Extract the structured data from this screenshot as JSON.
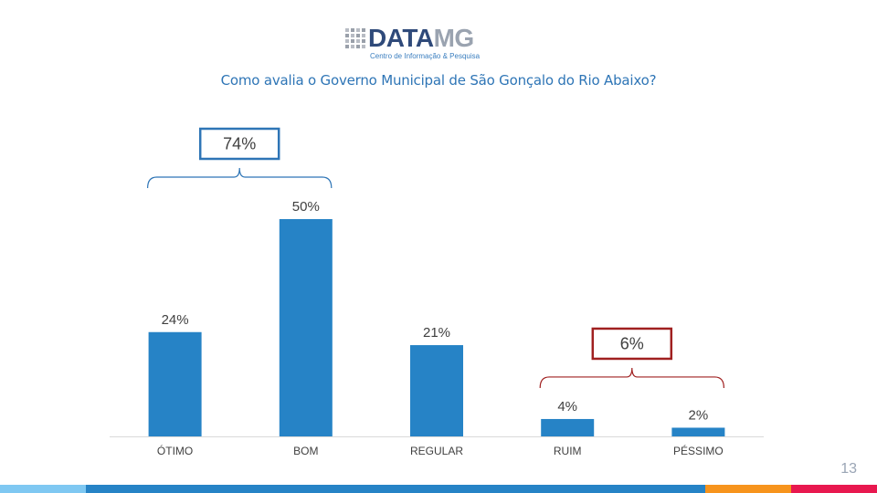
{
  "logo": {
    "brand_main": "DATA",
    "brand_accent": "MG",
    "tagline": "Centro de Informação & Pesquisa"
  },
  "page_title": "Como avalia o Governo Municipal de São Gonçalo do Rio Abaixo?",
  "page_number": "13",
  "chart_data": {
    "type": "bar",
    "title": "Como avalia o Governo Municipal de São Gonçalo do Rio Abaixo?",
    "categories": [
      "ÓTIMO",
      "BOM",
      "REGULAR",
      "RUIM",
      "PÉSSIMO"
    ],
    "values": [
      24,
      50,
      21,
      4,
      2
    ],
    "value_labels": [
      "24%",
      "50%",
      "21%",
      "4%",
      "2%"
    ],
    "ylim": [
      0,
      50
    ],
    "grid": false,
    "bar_color": "#2683c6",
    "groups": [
      {
        "label": "74%",
        "categories": [
          "ÓTIMO",
          "BOM"
        ],
        "color": "#2e75b6"
      },
      {
        "label": "6%",
        "categories": [
          "RUIM",
          "PÉSSIMO"
        ],
        "color": "#a02020"
      }
    ]
  },
  "footer_colors": [
    "#7fc8f2",
    "#2683c6",
    "#f7941d",
    "#e8184f"
  ]
}
